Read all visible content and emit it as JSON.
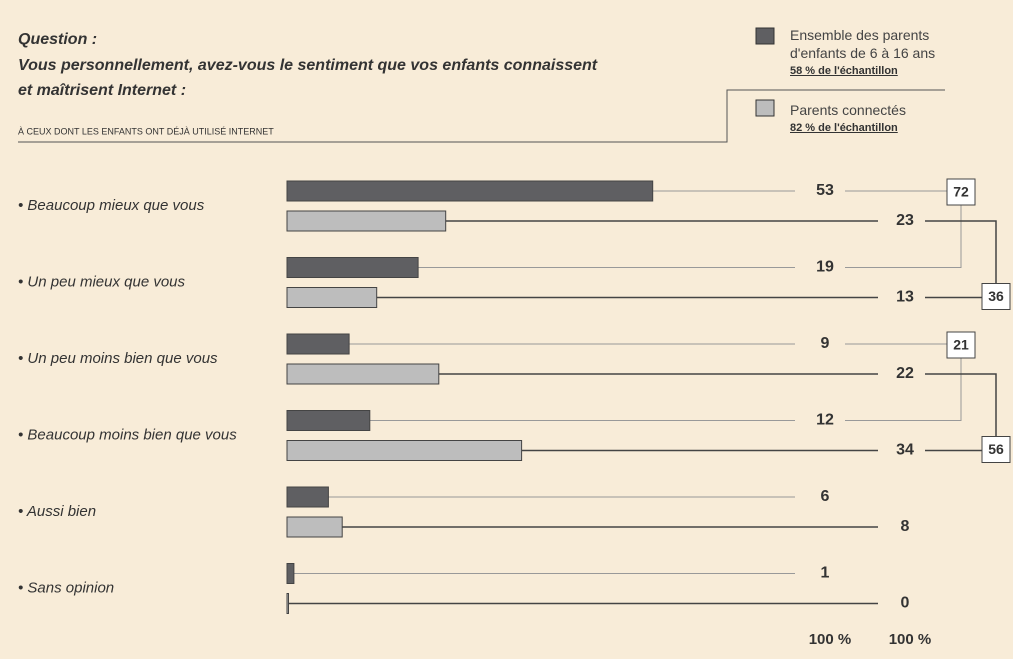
{
  "chart_data": {
    "type": "bar",
    "orientation": "horizontal",
    "title": "Question :",
    "subtitle": [
      "Vous personnellement, avez-vous le sentiment que vos enfants connaissent",
      "et maîtrisent Internet :"
    ],
    "note": "À CEUX DONT LES ENFANTS ONT DÉJÀ UTILISÉ INTERNET",
    "categories": [
      "• Beaucoup mieux que vous",
      "• Un peu mieux que vous",
      "• Un peu moins bien que vous",
      "• Beaucoup moins bien que vous",
      "• Aussi bien",
      "• Sans opinion"
    ],
    "series": [
      {
        "name": "Ensemble des parents d'enfants de 6 à 16 ans",
        "sample": "58 % de l'échantillon",
        "color": "#5f5f62",
        "values": [
          53,
          19,
          9,
          12,
          6,
          1
        ]
      },
      {
        "name": "Parents connectés",
        "sample": "82 % de l'échantillon",
        "color": "#bdbdbd",
        "values": [
          23,
          13,
          22,
          34,
          8,
          0
        ]
      }
    ],
    "totals": [
      72,
      36,
      21,
      56
    ],
    "column_totals": [
      {
        "value": 100,
        "label": "100 %"
      },
      {
        "value": 100,
        "label": "100 %"
      }
    ]
  }
}
